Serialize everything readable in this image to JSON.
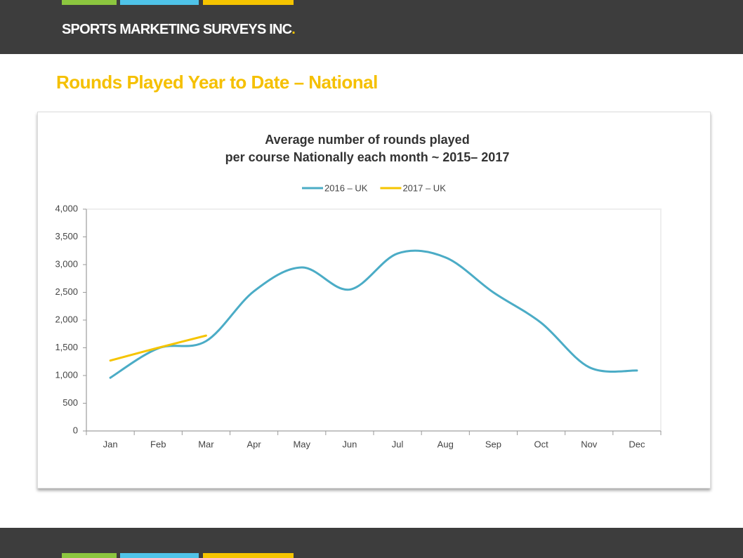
{
  "header": {
    "brand": "SPORTS MARKETING SURVEYS INC",
    "brand_dot": "."
  },
  "heading": "Rounds Played Year to Date – National",
  "chart_data": {
    "type": "line",
    "title": [
      "Average number of rounds played",
      "per course Nationally each month ~ 2015– 2017"
    ],
    "categories": [
      "Jan",
      "Feb",
      "Mar",
      "Apr",
      "May",
      "Jun",
      "Jul",
      "Aug",
      "Sep",
      "Oct",
      "Nov",
      "Dec"
    ],
    "series": [
      {
        "name": "2016 – UK",
        "color": "#4bacc6",
        "values": [
          960,
          1490,
          1620,
          2520,
          2950,
          2550,
          3200,
          3130,
          2500,
          1950,
          1150,
          1090
        ]
      },
      {
        "name": "2017 – UK",
        "color": "#f5c400",
        "values": [
          1270,
          1500,
          1720,
          null,
          null,
          null,
          null,
          null,
          null,
          null,
          null,
          null
        ]
      }
    ],
    "ylim": [
      0,
      4000
    ],
    "yticks": [
      0,
      500,
      {
        "value": 1000,
        "label": "1,000"
      },
      {
        "value": 1500,
        "label": "1,500"
      },
      {
        "value": 2000,
        "label": "2,000"
      },
      {
        "value": 2500,
        "label": "2,500"
      },
      {
        "value": 3000,
        "label": "3,000"
      },
      {
        "value": 3500,
        "label": "3,500"
      },
      {
        "value": 4000,
        "label": "4,000"
      }
    ],
    "grid": false,
    "legend": "top",
    "smooth": true
  }
}
